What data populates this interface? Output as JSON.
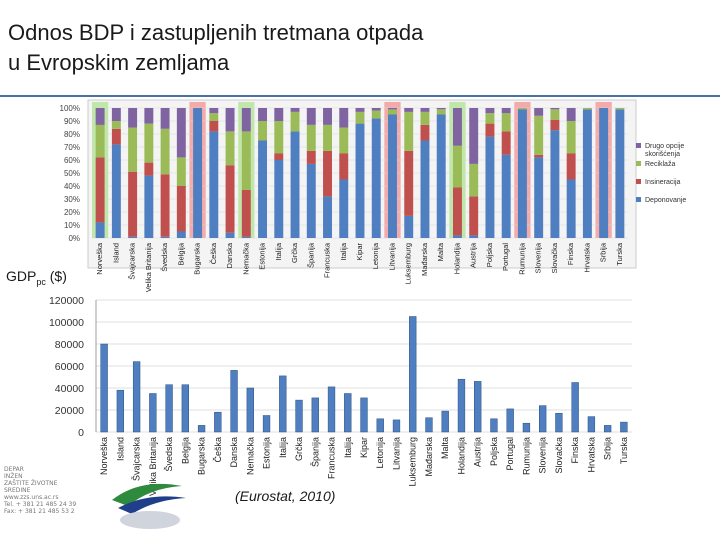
{
  "slide": {
    "title_line1": "Odnos BDP i zastupljenih tretmana otpada",
    "title_line2": "u Evropskim zemljama",
    "gdp_label_main": "GDP",
    "gdp_label_sub": "pc",
    "gdp_label_unit": "($)",
    "source": "(Eurostat, 2010)",
    "accent_color": "#4a72a8"
  },
  "footer": {
    "lines": [
      "DEPAR",
      "INŽEN",
      "ZAŠTITE ŽIVOTNE",
      "SREDINE",
      "www.zzs.uns.ac.rs",
      "Tel. + 381 21 485 24 39",
      "Fax: + 381 21 485 53 2"
    ],
    "logo_icon": "department-logo-icon"
  },
  "chart_data": [
    {
      "type": "bar",
      "stacked": true,
      "countries": [
        "Norveška",
        "Island",
        "Švajcarska",
        "Velika Britanija",
        "Švedska",
        "Belgija",
        "Bugarska",
        "Češka",
        "Danska",
        "Nemačka",
        "Estonija",
        "Italija",
        "Grčka",
        "Španija",
        "Francuska",
        "Italija",
        "Kipar",
        "Letonija",
        "Litvanija",
        "Luksemburg",
        "Mađarska",
        "Malta",
        "Holandija",
        "Austrija",
        "Poljska",
        "Portugal",
        "Rumunija",
        "Slovenija",
        "Slovačka",
        "Finska",
        "Hrvatska",
        "Srbija",
        "Turska"
      ],
      "yticks": [
        "100%",
        "90%",
        "80%",
        "70%",
        "60%",
        "50%",
        "40%",
        "30%",
        "20%",
        "10%",
        "0%"
      ],
      "ylim": [
        0,
        100
      ],
      "highlighted_green": [
        "Norveška",
        "Nemačka",
        "Holandija"
      ],
      "highlighted_red": [
        "Bugarska",
        "Litvanija",
        "Rumunija",
        "Srbija"
      ],
      "series": [
        {
          "name": "Deponovanje",
          "color": "#4f7fc0",
          "values": [
            12,
            72,
            1,
            48,
            1,
            5,
            100,
            82,
            4,
            1,
            75,
            60,
            82,
            57,
            32,
            45,
            88,
            92,
            95,
            17,
            75,
            95,
            2,
            2,
            78,
            64,
            99,
            62,
            83,
            45,
            99,
            100,
            99
          ]
        },
        {
          "name": "Insineracija",
          "color": "#c0504d",
          "values": [
            50,
            12,
            50,
            10,
            48,
            35,
            0,
            8,
            52,
            36,
            0,
            5,
            0,
            10,
            35,
            20,
            0,
            0,
            0,
            50,
            12,
            0,
            37,
            30,
            10,
            18,
            0,
            2,
            8,
            20,
            0,
            0,
            0
          ]
        },
        {
          "name": "Reciklaža",
          "color": "#9bbb59",
          "values": [
            25,
            6,
            34,
            30,
            35,
            22,
            0,
            6,
            26,
            45,
            15,
            25,
            15,
            20,
            20,
            20,
            9,
            6,
            4,
            30,
            10,
            4,
            32,
            25,
            8,
            14,
            1,
            30,
            8,
            25,
            1,
            0,
            1
          ]
        },
        {
          "name": "Drugo opcije iskorišćenja",
          "color": "#8064a2",
          "values": [
            13,
            10,
            15,
            12,
            16,
            38,
            0,
            4,
            18,
            18,
            10,
            10,
            3,
            13,
            13,
            15,
            3,
            2,
            1,
            3,
            3,
            1,
            29,
            43,
            4,
            4,
            0,
            6,
            1,
            10,
            0,
            0,
            0
          ]
        }
      ]
    },
    {
      "type": "bar",
      "countries": [
        "Norveška",
        "Island",
        "Švajcarska",
        "Velika Britanija",
        "Švedska",
        "Belgija",
        "Bugarska",
        "Češka",
        "Danska",
        "Nemačka",
        "Estonija",
        "Italija",
        "Grčka",
        "Španija",
        "Francuska",
        "Italija",
        "Kipar",
        "Letonija",
        "Litvanija",
        "Luksemburg",
        "Mađarska",
        "Malta",
        "Holandija",
        "Austrija",
        "Poljska",
        "Portugal",
        "Rumunija",
        "Slovenija",
        "Slovačka",
        "Finska",
        "Hrvatska",
        "Srbija",
        "Turska"
      ],
      "values": [
        80000,
        38000,
        64000,
        35000,
        43000,
        43000,
        6000,
        18000,
        56000,
        40000,
        15000,
        51000,
        29000,
        31000,
        41000,
        35000,
        31000,
        12000,
        11000,
        105000,
        13000,
        19000,
        48000,
        46000,
        12000,
        21000,
        8000,
        24000,
        17000,
        45000,
        14000,
        6000,
        9000
      ],
      "yticks": [
        "120000",
        "100000",
        "80000",
        "60000",
        "40000",
        "20000",
        "0"
      ],
      "ylim": [
        0,
        120000
      ],
      "bar_color": "#4f7fc0"
    }
  ]
}
